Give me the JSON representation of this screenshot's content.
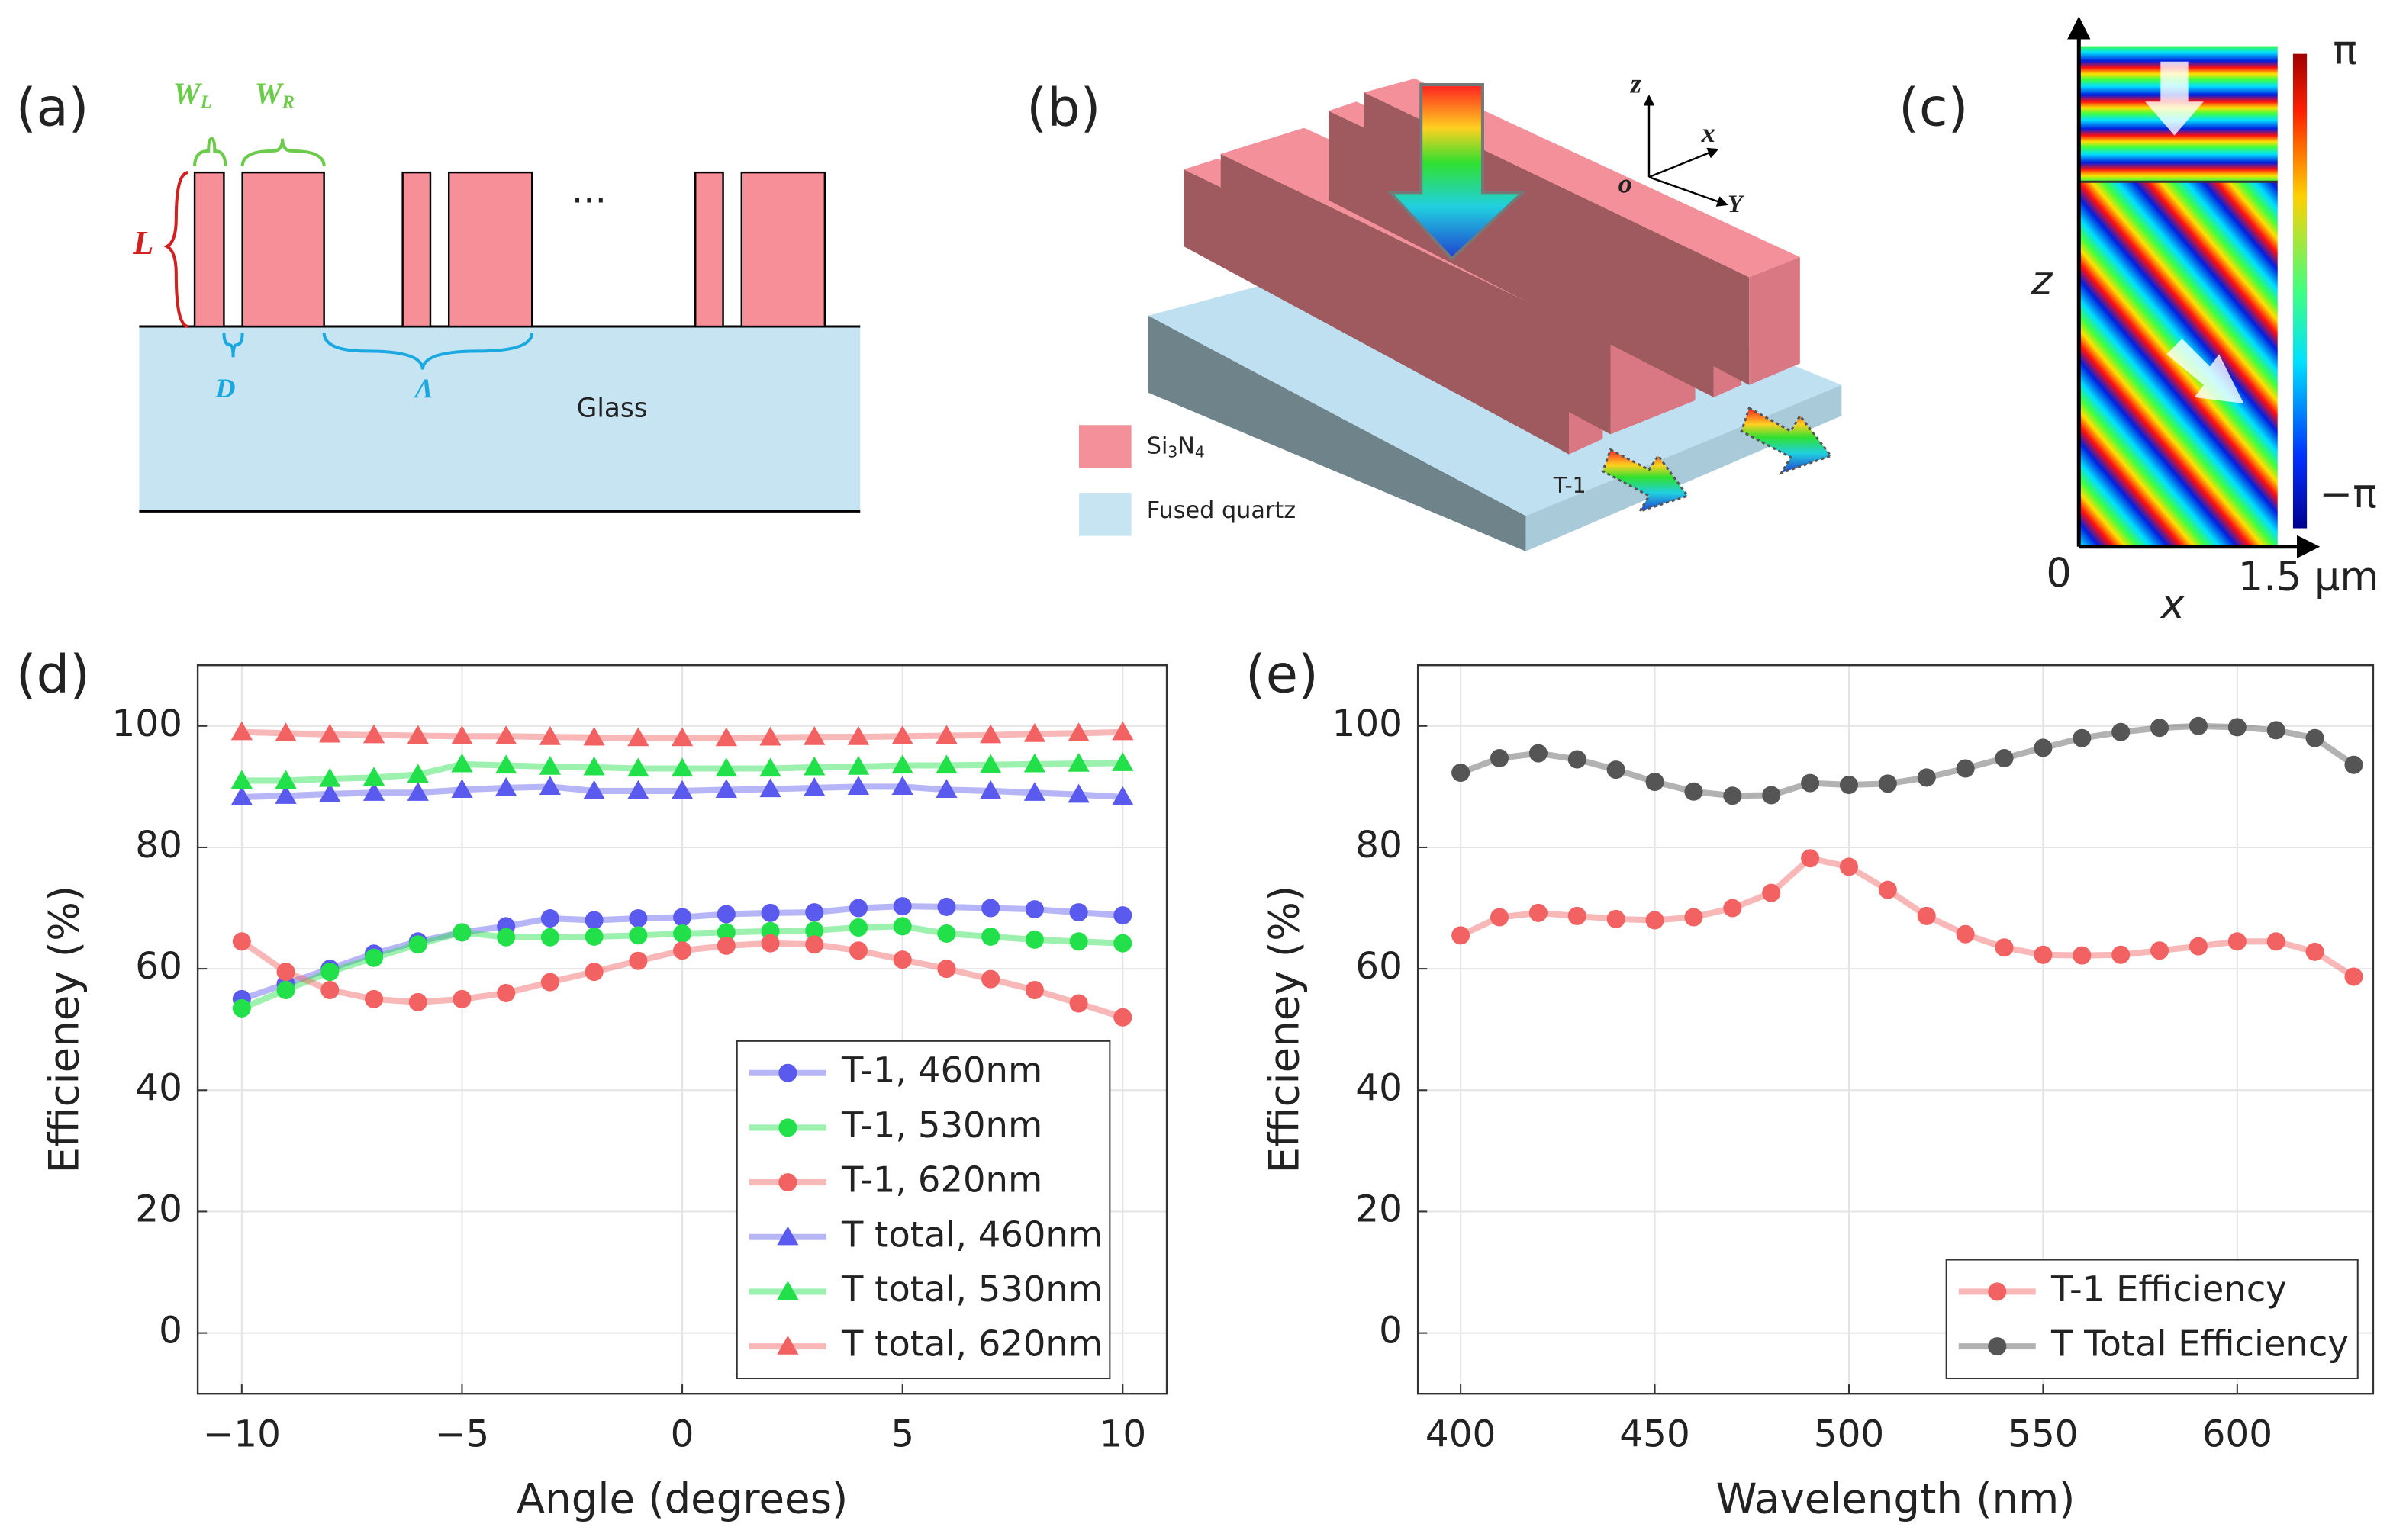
{
  "diagram": {
    "a": {
      "label": "(a)",
      "wl": [
        "W",
        "L"
      ],
      "wr": [
        "W",
        "R"
      ],
      "height": "L",
      "gap": "D",
      "period": "Λ",
      "substrate": "Glass",
      "dots": "···"
    },
    "b": {
      "label": "(b)",
      "axes": [
        "z",
        "x",
        "o",
        "Y"
      ],
      "legend": [
        [
          "Si",
          "3",
          "N",
          "4"
        ],
        "Fused quartz"
      ],
      "order": "T-1"
    },
    "c": {
      "label": "(c)",
      "cmax": "π",
      "cmin": "−π",
      "zlabel": "z",
      "x0": "0",
      "x1": "1.5 μm",
      "xlabel": "x"
    }
  },
  "chart_data": [
    {
      "type": "line",
      "panel": "(d)",
      "x_label": "Angle (degrees)",
      "y_label": "Efficieney (%)",
      "x": [
        -10,
        -9,
        -8,
        -7,
        -6,
        -5,
        -4,
        -3,
        -2,
        -1,
        0,
        1,
        2,
        3,
        4,
        5,
        6,
        7,
        8,
        9,
        10
      ],
      "series": [
        {
          "name": "T-1, 460nm",
          "color": "#5a5aee",
          "marker": "circle",
          "values": [
            55,
            57.5,
            60,
            62.5,
            64.5,
            66,
            67,
            68.3,
            68,
            68.3,
            68.5,
            69,
            69.2,
            69.3,
            70,
            70.3,
            70.2,
            70,
            69.8,
            69.3,
            68.8
          ]
        },
        {
          "name": "T-1, 530nm",
          "color": "#22e04a",
          "marker": "circle",
          "values": [
            53.5,
            56.5,
            59.5,
            61.8,
            64,
            66,
            65.2,
            65.2,
            65.3,
            65.5,
            65.8,
            66,
            66.2,
            66.3,
            66.8,
            67,
            65.8,
            65.3,
            64.8,
            64.5,
            64.2
          ]
        },
        {
          "name": "T-1, 620nm",
          "color": "#f26262",
          "marker": "circle",
          "values": [
            64.5,
            59.5,
            56.5,
            55,
            54.5,
            55,
            56,
            57.8,
            59.5,
            61.3,
            63,
            63.8,
            64.2,
            64,
            63,
            61.5,
            60,
            58.3,
            56.5,
            54.3,
            52
          ]
        },
        {
          "name": "T total, 460nm",
          "color": "#5a5aee",
          "marker": "triangle",
          "values": [
            88.3,
            88.5,
            88.8,
            89,
            89,
            89.5,
            89.8,
            90,
            89.3,
            89.3,
            89.3,
            89.5,
            89.6,
            89.8,
            90,
            90,
            89.5,
            89.3,
            89,
            88.7,
            88.3
          ]
        },
        {
          "name": "T total, 530nm",
          "color": "#22e04a",
          "marker": "triangle",
          "values": [
            91,
            91,
            91.3,
            91.5,
            92,
            93.7,
            93.5,
            93.3,
            93.2,
            93,
            93,
            93,
            93,
            93.2,
            93.3,
            93.5,
            93.5,
            93.6,
            93.7,
            93.8,
            93.9
          ]
        },
        {
          "name": "T total, 620nm",
          "color": "#f26262",
          "marker": "triangle",
          "values": [
            99,
            98.8,
            98.6,
            98.5,
            98.4,
            98.3,
            98.3,
            98.2,
            98.1,
            98,
            98,
            98,
            98.1,
            98.2,
            98.2,
            98.3,
            98.4,
            98.5,
            98.7,
            98.8,
            99
          ]
        }
      ],
      "xlim": [
        -11,
        11
      ],
      "xticks": [
        {
          "value": -10,
          "label": "−10"
        },
        {
          "value": -5,
          "label": "−5"
        },
        0,
        5,
        10
      ],
      "ylim": [
        -10,
        110
      ],
      "yticks": [
        0,
        20,
        40,
        60,
        80,
        100
      ],
      "grid": true,
      "legend": "lower right"
    },
    {
      "type": "line",
      "panel": "(e)",
      "x_label": "Wavelength (nm)",
      "y_label": "Efficieney (%)",
      "x": [
        400,
        410,
        420,
        430,
        440,
        450,
        460,
        470,
        480,
        490,
        500,
        510,
        520,
        530,
        540,
        550,
        560,
        570,
        580,
        590,
        600,
        610,
        620,
        630
      ],
      "series": [
        {
          "name": "T-1 Efficiency",
          "color": "#f26262",
          "marker": "circle",
          "values": [
            65.5,
            68.5,
            69.2,
            68.7,
            68.2,
            68,
            68.5,
            70,
            72.5,
            78.2,
            76.8,
            73,
            68.7,
            65.7,
            63.5,
            62.3,
            62.2,
            62.3,
            63,
            63.7,
            64.5,
            64.5,
            62.8,
            58.7
          ]
        },
        {
          "name": "T Total Efficiency",
          "color": "#555555",
          "marker": "circle",
          "values": [
            92.3,
            94.7,
            95.5,
            94.5,
            92.8,
            90.8,
            89.2,
            88.5,
            88.6,
            90.6,
            90.3,
            90.5,
            91.5,
            93,
            94.7,
            96.4,
            98,
            99,
            99.7,
            100,
            99.8,
            99.3,
            98,
            93.6
          ]
        }
      ],
      "xlim": [
        389,
        635
      ],
      "xticks": [
        400,
        450,
        500,
        550,
        600
      ],
      "ylim": [
        -10,
        110
      ],
      "yticks": [
        0,
        20,
        40,
        60,
        80,
        100
      ],
      "grid": true,
      "legend": "lower right"
    }
  ]
}
